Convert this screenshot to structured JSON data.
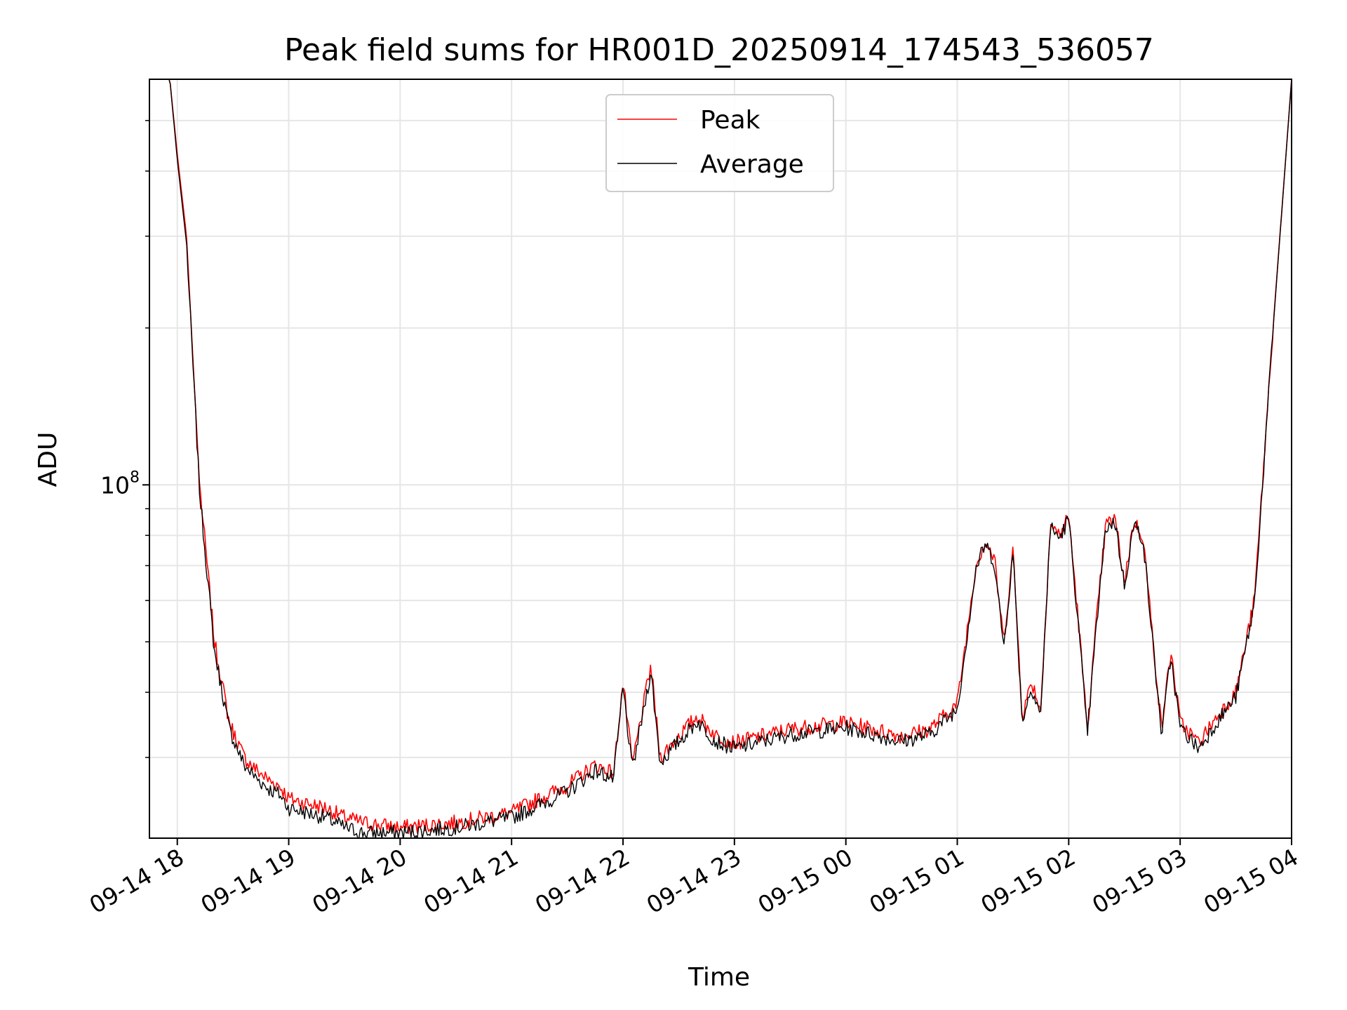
{
  "chart_data": {
    "type": "line",
    "title": "Peak field sums for HR001D_20250914_174543_536057",
    "xlabel": "Time",
    "ylabel": "ADU",
    "y_scale": "log",
    "ylim": [
      21000000,
      600000000
    ],
    "y_major_ticks": [
      {
        "value": 100000000,
        "base": "10",
        "exp": "8"
      }
    ],
    "y_minor_ticks": [
      30000000,
      40000000,
      50000000,
      60000000,
      70000000,
      80000000,
      90000000,
      200000000,
      300000000,
      400000000,
      500000000
    ],
    "x_ticks": [
      "09-14 18",
      "09-14 19",
      "09-14 20",
      "09-14 21",
      "09-14 22",
      "09-14 23",
      "09-15 00",
      "09-15 01",
      "09-15 02",
      "09-15 03",
      "09-15 04"
    ],
    "xlim": [
      "2025-09-14 17:45",
      "2025-09-15 04:00"
    ],
    "grid": true,
    "legend_position": "top-center",
    "series": [
      {
        "name": "Peak",
        "color": "#ff0000",
        "x": [
          "2025-09-14 17:46",
          "2025-09-14 17:56",
          "2025-09-14 18:00",
          "2025-09-14 18:05",
          "2025-09-14 18:12",
          "2025-09-14 18:20",
          "2025-09-14 18:28",
          "2025-09-14 18:36",
          "2025-09-14 18:42",
          "2025-09-14 18:50",
          "2025-09-14 18:55",
          "2025-09-14 19:00",
          "2025-09-14 19:10",
          "2025-09-14 19:20",
          "2025-09-14 19:30",
          "2025-09-14 19:40",
          "2025-09-14 20:00",
          "2025-09-14 20:30",
          "2025-09-14 21:00",
          "2025-09-14 21:15",
          "2025-09-14 21:30",
          "2025-09-14 21:45",
          "2025-09-14 21:55",
          "2025-09-14 22:00",
          "2025-09-14 22:05",
          "2025-09-14 22:15",
          "2025-09-14 22:20",
          "2025-09-14 22:30",
          "2025-09-14 22:40",
          "2025-09-14 22:50",
          "2025-09-14 23:00",
          "2025-09-14 23:30",
          "2025-09-15 00:00",
          "2025-09-15 00:30",
          "2025-09-15 00:45",
          "2025-09-15 01:00",
          "2025-09-15 01:10",
          "2025-09-15 01:15",
          "2025-09-15 01:20",
          "2025-09-15 01:25",
          "2025-09-15 01:30",
          "2025-09-15 01:35",
          "2025-09-15 01:40",
          "2025-09-15 01:45",
          "2025-09-15 01:50",
          "2025-09-15 01:55",
          "2025-09-15 02:00",
          "2025-09-15 02:05",
          "2025-09-15 02:10",
          "2025-09-15 02:15",
          "2025-09-15 02:20",
          "2025-09-15 02:25",
          "2025-09-15 02:30",
          "2025-09-15 02:35",
          "2025-09-15 02:40",
          "2025-09-15 02:45",
          "2025-09-15 02:50",
          "2025-09-15 02:55",
          "2025-09-15 03:00",
          "2025-09-15 03:10",
          "2025-09-15 03:20",
          "2025-09-15 03:30",
          "2025-09-15 03:40",
          "2025-09-15 03:50",
          "2025-09-15 04:00"
        ],
        "y": [
          600000000,
          600000000,
          430000000,
          300000000,
          100000000,
          50000000,
          35000000,
          30000000,
          28500000,
          27000000,
          26500000,
          25000000,
          24500000,
          24000000,
          23000000,
          22500000,
          22000000,
          22500000,
          23500000,
          25000000,
          26500000,
          29000000,
          28000000,
          42000000,
          29000000,
          45000000,
          30000000,
          33000000,
          36000000,
          33000000,
          32000000,
          34000000,
          35000000,
          33000000,
          34000000,
          38000000,
          70000000,
          78000000,
          72000000,
          50000000,
          75000000,
          36000000,
          42000000,
          37000000,
          84000000,
          80000000,
          87000000,
          56000000,
          34000000,
          55000000,
          84000000,
          86000000,
          65000000,
          85000000,
          80000000,
          52000000,
          34000000,
          48000000,
          35000000,
          32000000,
          36000000,
          40000000,
          60000000,
          200000000,
          600000000
        ]
      },
      {
        "name": "Average",
        "color": "#000000",
        "x": [
          "2025-09-14 17:46",
          "2025-09-14 17:56",
          "2025-09-14 18:00",
          "2025-09-14 18:05",
          "2025-09-14 18:12",
          "2025-09-14 18:20",
          "2025-09-14 18:28",
          "2025-09-14 18:36",
          "2025-09-14 18:42",
          "2025-09-14 18:50",
          "2025-09-14 18:55",
          "2025-09-14 19:00",
          "2025-09-14 19:10",
          "2025-09-14 19:20",
          "2025-09-14 19:30",
          "2025-09-14 19:40",
          "2025-09-14 20:00",
          "2025-09-14 20:30",
          "2025-09-14 21:00",
          "2025-09-14 21:15",
          "2025-09-14 21:30",
          "2025-09-14 21:45",
          "2025-09-14 21:55",
          "2025-09-14 22:00",
          "2025-09-14 22:05",
          "2025-09-14 22:15",
          "2025-09-14 22:20",
          "2025-09-14 22:30",
          "2025-09-14 22:40",
          "2025-09-14 22:50",
          "2025-09-14 23:00",
          "2025-09-14 23:30",
          "2025-09-15 00:00",
          "2025-09-15 00:30",
          "2025-09-15 00:45",
          "2025-09-15 01:00",
          "2025-09-15 01:10",
          "2025-09-15 01:15",
          "2025-09-15 01:20",
          "2025-09-15 01:25",
          "2025-09-15 01:30",
          "2025-09-15 01:35",
          "2025-09-15 01:40",
          "2025-09-15 01:45",
          "2025-09-15 01:50",
          "2025-09-15 01:55",
          "2025-09-15 02:00",
          "2025-09-15 02:05",
          "2025-09-15 02:10",
          "2025-09-15 02:15",
          "2025-09-15 02:20",
          "2025-09-15 02:25",
          "2025-09-15 02:30",
          "2025-09-15 02:35",
          "2025-09-15 02:40",
          "2025-09-15 02:45",
          "2025-09-15 02:50",
          "2025-09-15 02:55",
          "2025-09-15 03:00",
          "2025-09-15 03:10",
          "2025-09-15 03:20",
          "2025-09-15 03:30",
          "2025-09-15 03:40",
          "2025-09-15 03:50",
          "2025-09-15 04:00"
        ],
        "y": [
          600000000,
          600000000,
          420000000,
          290000000,
          97000000,
          48000000,
          34000000,
          29000000,
          27500000,
          26000000,
          25500000,
          24000000,
          23500000,
          23000000,
          22000000,
          21500000,
          21500000,
          22000000,
          23000000,
          24300000,
          25800000,
          28300000,
          27300000,
          41000000,
          28300000,
          44000000,
          29300000,
          32200000,
          35200000,
          32200000,
          31200000,
          33200000,
          34200000,
          32200000,
          33200000,
          37200000,
          69000000,
          77000000,
          71000000,
          49000000,
          74000000,
          35200000,
          41000000,
          36200000,
          83000000,
          79000000,
          86000000,
          55000000,
          33200000,
          54000000,
          83000000,
          85000000,
          64000000,
          84000000,
          79000000,
          51000000,
          33200000,
          47000000,
          34200000,
          31200000,
          35200000,
          39200000,
          59000000,
          198000000,
          600000000
        ]
      }
    ]
  }
}
